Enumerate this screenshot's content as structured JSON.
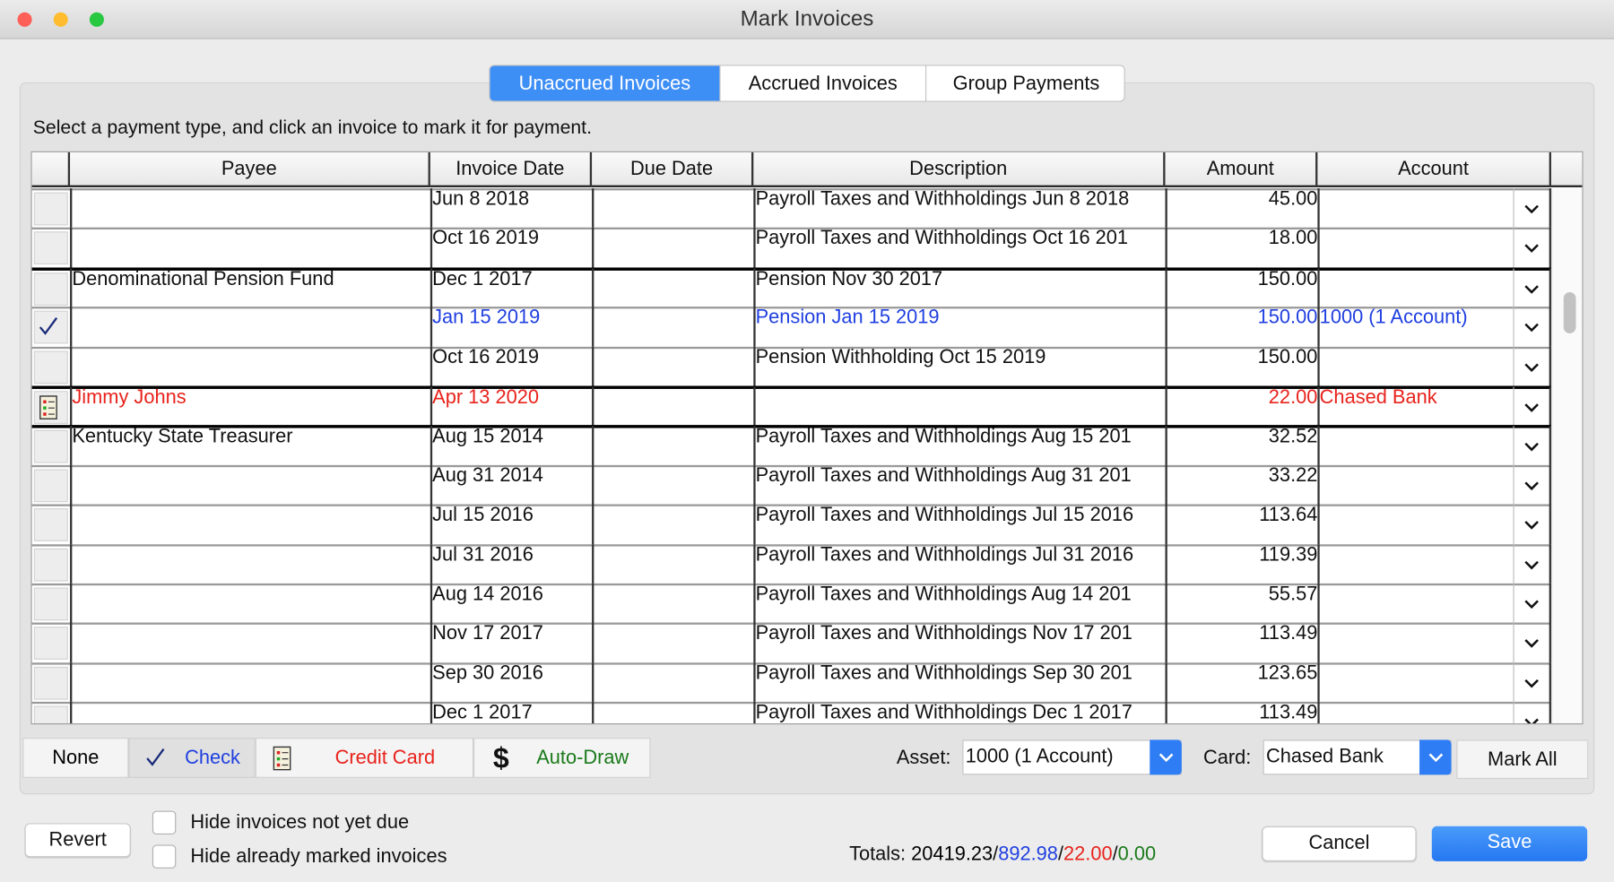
{
  "window": {
    "title": "Mark Invoices"
  },
  "tabs": [
    "Unaccrued Invoices",
    "Accrued Invoices",
    "Group Payments"
  ],
  "active_tab": 0,
  "instruction": "Select a payment type, and click an invoice to mark it for payment.",
  "table": {
    "columns": [
      "Payee",
      "Invoice Date",
      "Due Date",
      "Description",
      "Amount",
      "Account"
    ],
    "rows": [
      {
        "invoice_date": "Jun 8 2018",
        "description": "Payroll Taxes and Withholdings Jun 8 2018",
        "amount": "45.00"
      },
      {
        "invoice_date": "Oct 16 2019",
        "description": "Payroll Taxes and Withholdings Oct 16 201",
        "amount": "18.00"
      },
      {
        "payee": "Denominational Pension Fund",
        "invoice_date": "Dec 1 2017",
        "description": "Pension Nov 30 2017",
        "amount": "150.00"
      },
      {
        "mark": "check",
        "color": "#1f3fe0",
        "invoice_date": "Jan 15 2019",
        "description": "Pension Jan 15 2019",
        "amount": "150.00",
        "account": "1000 (1 Account)"
      },
      {
        "invoice_date": "Oct 16 2019",
        "description": "Pension Withholding Oct 15 2019",
        "amount": "150.00"
      },
      {
        "mark": "credit-card",
        "color": "#e8221b",
        "payee": "Jimmy Johns",
        "invoice_date": "Apr 13 2020",
        "amount": "22.00",
        "account": "Chased Bank"
      },
      {
        "payee": "Kentucky State Treasurer",
        "invoice_date": "Aug 15 2014",
        "description": "Payroll Taxes and Withholdings Aug 15 201",
        "amount": "32.52"
      },
      {
        "invoice_date": "Aug 31 2014",
        "description": "Payroll Taxes and Withholdings Aug 31 201",
        "amount": "33.22"
      },
      {
        "invoice_date": "Jul 15 2016",
        "description": "Payroll Taxes and Withholdings Jul 15 2016",
        "amount": "113.64"
      },
      {
        "invoice_date": "Jul 31 2016",
        "description": "Payroll Taxes and Withholdings Jul 31 2016",
        "amount": "119.39"
      },
      {
        "invoice_date": "Aug 14 2016",
        "description": "Payroll Taxes and Withholdings Aug 14 201",
        "amount": "55.57"
      },
      {
        "invoice_date": "Nov 17 2017",
        "description": "Payroll Taxes and Withholdings Nov 17 201",
        "amount": "113.49"
      },
      {
        "invoice_date": "Sep 30 2016",
        "description": "Payroll Taxes and Withholdings Sep 30 201",
        "amount": "123.65"
      },
      {
        "invoice_date": "Dec 1 2017",
        "description": "Payroll Taxes and Withholdings Dec 1 2017",
        "amount": "113.49"
      }
    ]
  },
  "payment_types": [
    {
      "label": "None",
      "color": "#000000"
    },
    {
      "label": "Check",
      "color": "#1f3fe0",
      "icon": "check"
    },
    {
      "label": "Credit Card",
      "color": "#e8221b",
      "icon": "credit-card"
    },
    {
      "label": "Auto-Draw",
      "color": "#1a7a1a",
      "icon_text": "$"
    }
  ],
  "asset": {
    "label": "Asset:",
    "value": "1000 (1 Account)"
  },
  "card": {
    "label": "Card:",
    "value": "Chased Bank"
  },
  "mark_all": "Mark All",
  "revert": "Revert",
  "checkboxes": [
    "Hide invoices not yet due",
    "Hide already marked invoices"
  ],
  "totals": {
    "label": "Totals:",
    "separator": "/",
    "parts": [
      {
        "text": "20419.23",
        "color": "#000000"
      },
      {
        "text": "892.98",
        "color": "#1f3fe0"
      },
      {
        "text": "22.00",
        "color": "#e8221b"
      },
      {
        "text": "0.00",
        "color": "#1a7a1a"
      }
    ]
  },
  "cancel": "Cancel",
  "save": "Save"
}
